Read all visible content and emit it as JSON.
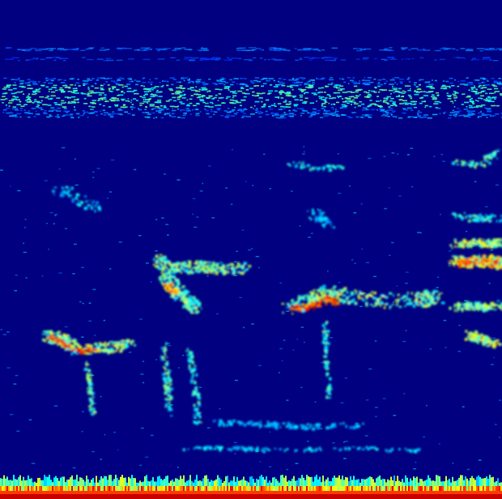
{
  "image": {
    "kind": "spectrogram",
    "colormap": "jet",
    "background_color": "#000080",
    "colormap_stops": [
      "#00007f",
      "#0000ff",
      "#007fff",
      "#00ffff",
      "#7fff7f",
      "#ffff00",
      "#ff7f00",
      "#ff0000",
      "#7f0000"
    ]
  }
}
